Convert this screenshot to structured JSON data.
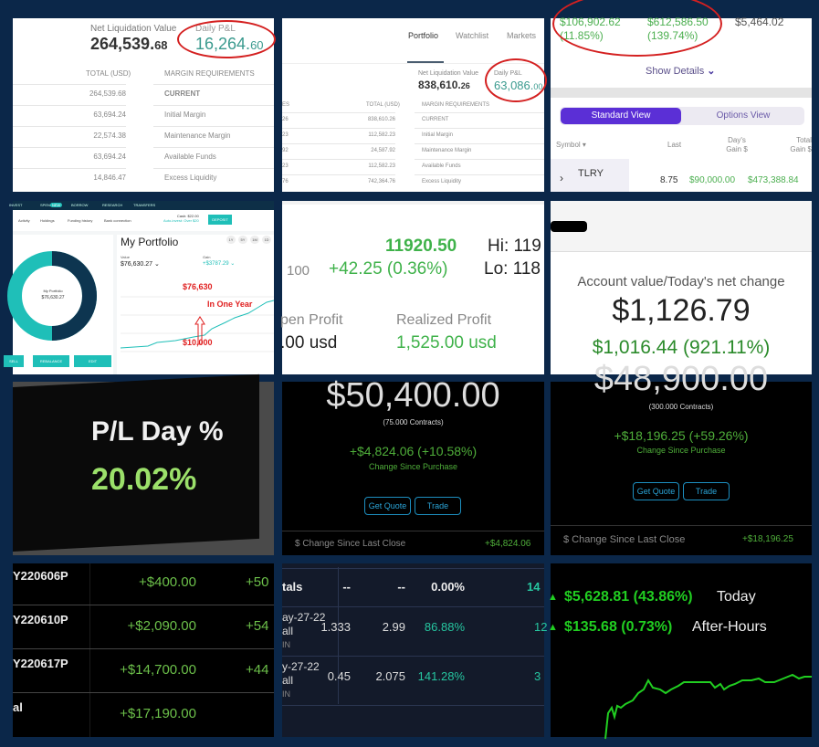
{
  "cell1": {
    "nlv_label": "Net Liquidation Value",
    "nlv_int": "264,539.",
    "nlv_dec": "68",
    "pnl_label": "Daily P&L",
    "pnl_int": "16,264.",
    "pnl_dec": "60",
    "total_header": "TOTAL (USD)",
    "margin_header": "MARGIN REQUIREMENTS",
    "rows": [
      {
        "total": "264,539.68",
        "label": "CURRENT"
      },
      {
        "total": "63,694.24",
        "label": "Initial Margin"
      },
      {
        "total": "22,574.38",
        "label": "Maintenance Margin"
      },
      {
        "total": "63,694.24",
        "label": "Available Funds"
      },
      {
        "total": "14,846.47",
        "label": "Excess Liquidity"
      }
    ]
  },
  "cell2": {
    "tabs": [
      "Portfolio",
      "Watchlist",
      "Markets"
    ],
    "nlv_label": "Net Liquidation Value",
    "nlv_int": "838,610.",
    "nlv_dec": "26",
    "pnl_label": "Daily P&L",
    "pnl_int": "63,086.",
    "pnl_dec": "00",
    "left_header": "ES",
    "total_header": "TOTAL (USD)",
    "margin_header": "MARGIN REQUIREMENTS",
    "rows": [
      {
        "left": "26",
        "total": "838,610.26",
        "label": "CURRENT"
      },
      {
        "left": "23",
        "total": "112,582.23",
        "label": "Initial Margin"
      },
      {
        "left": "92",
        "total": "24,587.92",
        "label": "Maintenance Margin"
      },
      {
        "left": "23",
        "total": "112,582.23",
        "label": "Available Funds"
      },
      {
        "left": "76",
        "total": "742,364.76",
        "label": "Excess Liquidity"
      }
    ]
  },
  "cell3": {
    "v1": "$106,902.62",
    "p1": "(11.85%)",
    "v2": "$612,586.50",
    "p2": "(139.74%)",
    "v3": "$5,464.02",
    "show_details": "Show Details",
    "standard_view": "Standard View",
    "options_view": "Options View",
    "col_symbol": "Symbol",
    "col_last": "Last",
    "col_day_gain": "Day's Gain $",
    "col_total_gain": "Total Gain $",
    "symbol": "TLRY",
    "last": "8.75",
    "day_gain": "$90,000.00",
    "total_gain": "$473,388.84"
  },
  "cell4": {
    "nav": [
      "INVEST",
      "SPEND",
      "BORROW",
      "RESEARCH",
      "TRANSFERS"
    ],
    "nav_badge": "NEW",
    "subnav": [
      "Activity",
      "Holdings",
      "Funding history",
      "Bank connection"
    ],
    "cash": "Cash: $22.00",
    "autoinvest": "Auto-invest: Over $20",
    "deposit": "DEPOSIT",
    "title": "My Portfolio",
    "ranges": [
      "1Y",
      "5Y",
      "1M",
      "1D"
    ],
    "value_label": "Value",
    "value": "$76,630.27",
    "gain_label": "Gain",
    "gain": "+$3787.29",
    "donut_label": "My Portfolio",
    "donut_value": "$76,630.27",
    "annot_top": "$76,630",
    "annot_mid": "In One Year",
    "annot_bottom": "$10,000",
    "buttons": [
      "SELL",
      "REBALANCE",
      "EDIT"
    ],
    "accent": "#1fbfb8",
    "dark": "#0d3550"
  },
  "cell5": {
    "price": "11920.50",
    "hi": "Hi: 119",
    "change": "+42.25 (0.36%)",
    "lo": "Lo: 118",
    "left_num": "100",
    "open_label": "pen Profit",
    "open_value": ".00 usd",
    "realized_label": "Realized Profit",
    "realized_value": "1,525.00 usd"
  },
  "cell6": {
    "label": "Account value/Today's net change",
    "value": "$1,126.79",
    "change": "$1,016.44 (921.11%)"
  },
  "cell7": {
    "label": "P/L Day %",
    "value": "20.02%"
  },
  "cell8": {
    "value": "$50,400.00",
    "contracts": "(75.000 Contracts)",
    "change": "+$4,824.06 (+10.58%)",
    "change_label": "Change Since Purchase",
    "get_quote": "Get Quote",
    "trade": "Trade",
    "last_close_label": "$ Change Since Last Close",
    "last_close_value": "+$4,824.06"
  },
  "cell9": {
    "value": "$48,900.00",
    "contracts": "(300.000 Contracts)",
    "change": "+$18,196.25 (+59.26%)",
    "change_label": "Change Since Purchase",
    "get_quote": "Get Quote",
    "trade": "Trade",
    "last_close_label": "$ Change Since Last Close",
    "last_close_value": "+$18,196.25"
  },
  "cell10": {
    "rows": [
      {
        "sym": "Y220606P",
        "v": "+$400.00",
        "v2": "+50"
      },
      {
        "sym": "Y220610P",
        "v": "+$2,090.00",
        "v2": "+54"
      },
      {
        "sym": "Y220617P",
        "v": "+$14,700.00",
        "v2": "+44"
      },
      {
        "sym": "al",
        "v": "+$17,190.00",
        "v2": ""
      }
    ]
  },
  "cell11": {
    "totals": {
      "label": "tals",
      "a": "--",
      "b": "--",
      "c": "0.00%",
      "d": "14"
    },
    "rows": [
      {
        "l1": "ay-27-22",
        "l2": "all",
        "l3": "IN",
        "a": "1.333",
        "b": "2.99",
        "c": "86.88%",
        "d": "12"
      },
      {
        "l1": "y-27-22",
        "l2": "all",
        "l3": "IN",
        "a": "0.45",
        "b": "2.075",
        "c": "141.28%",
        "d": "3"
      }
    ]
  },
  "cell12": {
    "today": "$5,628.81 (43.86%)",
    "today_label": "Today",
    "ah": "$135.68 (0.73%)",
    "ah_label": "After-Hours"
  }
}
